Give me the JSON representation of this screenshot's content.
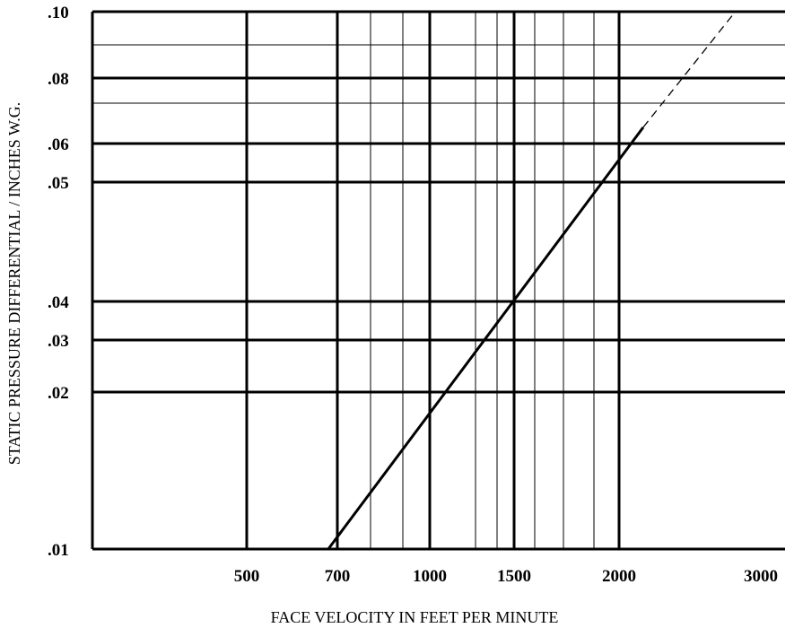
{
  "chart_data": {
    "type": "line",
    "title": "",
    "xlabel": "FACE VELOCITY IN FEET PER MINUTE",
    "ylabel": "STATIC PRESSURE DIFFERENTIAL / INCHES W.G.",
    "x_ticks": [
      {
        "value": 500,
        "label": "500"
      },
      {
        "value": 700,
        "label": "700"
      },
      {
        "value": 1000,
        "label": "1000"
      },
      {
        "value": 1500,
        "label": "1500"
      },
      {
        "value": 2000,
        "label": "2000"
      },
      {
        "value": 3000,
        "label": "3000"
      }
    ],
    "y_ticks": [
      {
        "value": 0.01,
        "label": ".01"
      },
      {
        "value": 0.02,
        "label": ".02"
      },
      {
        "value": 0.03,
        "label": ".03"
      },
      {
        "value": 0.04,
        "label": ".04"
      },
      {
        "value": 0.05,
        "label": ".05"
      },
      {
        "value": 0.06,
        "label": ".06"
      },
      {
        "value": 0.08,
        "label": ".08"
      },
      {
        "value": 0.1,
        "label": ".10"
      }
    ],
    "x_minor_gridlines": [
      800,
      900,
      1200,
      1300,
      1600,
      1700,
      1800
    ],
    "y_minor_gridlines": [
      0.07,
      0.09
    ],
    "grid": true,
    "series": [
      {
        "style": "solid",
        "points": [
          [
            680,
            0.01
          ],
          [
            2170,
            0.064
          ]
        ]
      },
      {
        "style": "dashed",
        "points": [
          [
            2170,
            0.064
          ],
          [
            2820,
            0.1
          ]
        ]
      }
    ]
  }
}
